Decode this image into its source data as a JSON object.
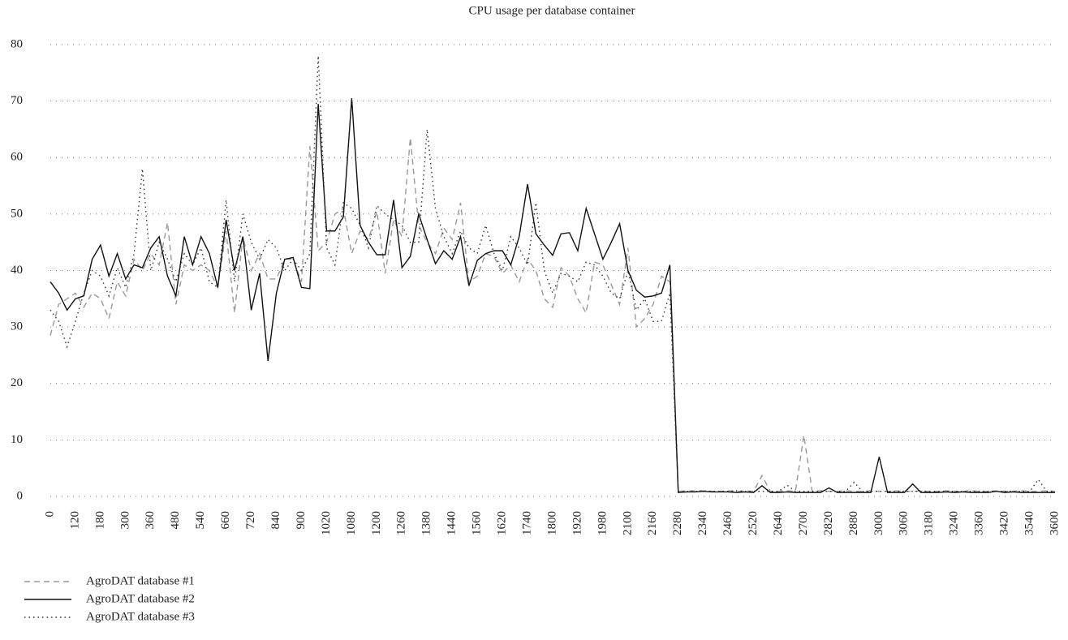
{
  "chart_data": {
    "type": "line",
    "title": "CPU usage per database container",
    "categories": [
      "0",
      null,
      null,
      "120",
      null,
      null,
      "180",
      null,
      null,
      "300",
      null,
      null,
      "360",
      null,
      null,
      "480",
      null,
      null,
      "540",
      null,
      null,
      "660",
      null,
      null,
      "720",
      null,
      null,
      "840",
      null,
      null,
      "900",
      null,
      null,
      "1020",
      null,
      null,
      "1080",
      null,
      null,
      "1200",
      null,
      null,
      "1260",
      null,
      null,
      "1380",
      null,
      null,
      "1440",
      null,
      null,
      "1560",
      null,
      null,
      "1620",
      null,
      null,
      "1740",
      null,
      null,
      "1800",
      null,
      null,
      "1920",
      null,
      null,
      "1980",
      null,
      null,
      "2100",
      null,
      null,
      "2160",
      null,
      null,
      "2280",
      null,
      null,
      "2340",
      null,
      null,
      "2460",
      null,
      null,
      "2520",
      null,
      null,
      "2640",
      null,
      null,
      "2700",
      null,
      null,
      "2820",
      null,
      null,
      "2880",
      null,
      null,
      "3000",
      null,
      null,
      "3060",
      null,
      null,
      "3180",
      null,
      null,
      "3240",
      null,
      null,
      "3360",
      null,
      null,
      "3420",
      null,
      null,
      "3540",
      null,
      null,
      "3600"
    ],
    "series": [
      {
        "name": "AgroDAT database #1",
        "color": "#999999",
        "dash": "7 5",
        "values": [
          28.5,
          34,
          35,
          36,
          33.5,
          36,
          35,
          31.5,
          38,
          35.5,
          42,
          40,
          43,
          41,
          48.5,
          34,
          41,
          40,
          41,
          40,
          37,
          47,
          32.5,
          46,
          40,
          43,
          38.5,
          38.5,
          42,
          42,
          38,
          62,
          43.5,
          45,
          50,
          51,
          43,
          47,
          45.5,
          50.5,
          39.5,
          49,
          46,
          63.5,
          48,
          45,
          43,
          47.5,
          45.5,
          52,
          38,
          39,
          43,
          42.5,
          39.5,
          41,
          38,
          42,
          40,
          35,
          33.5,
          40.5,
          39,
          35,
          32.5,
          41.5,
          41,
          37.5,
          34,
          44,
          30,
          31.5,
          34,
          39,
          38,
          0.9,
          1,
          1,
          1,
          0.9,
          0.9,
          1,
          0.9,
          1,
          0.9,
          3.7,
          0.9,
          0.9,
          1,
          0.9,
          10.8,
          0.9,
          1,
          0.9,
          0.9,
          1,
          0.9,
          0.9,
          1,
          0.9,
          0.9,
          1,
          0.9,
          0.9,
          1,
          0.9,
          0.9,
          1,
          0.9,
          0.9,
          1,
          0.9,
          0.9,
          1,
          0.9,
          0.9,
          1,
          0.9,
          0.9,
          1,
          0.9
        ]
      },
      {
        "name": "AgroDAT database #2",
        "color": "#111111",
        "dash": "",
        "values": [
          38,
          36,
          33,
          35,
          35.5,
          42,
          44.5,
          39,
          43,
          38.5,
          41,
          40.5,
          44,
          46,
          39,
          35.5,
          46,
          41,
          46,
          43,
          37,
          49,
          40,
          46,
          33,
          39.5,
          24,
          36,
          42,
          42.3,
          37,
          36.8,
          69.5,
          47,
          47,
          49.5,
          70.5,
          48,
          45,
          42.8,
          42.8,
          52.5,
          40.5,
          42.5,
          50,
          45.5,
          41.2,
          43.5,
          42,
          46,
          37.3,
          41.8,
          43,
          43.5,
          43.5,
          41,
          46,
          55.3,
          46.5,
          44.5,
          42.7,
          46.5,
          46.7,
          43.5,
          51,
          46.5,
          42,
          45,
          48.3,
          40,
          36.5,
          35.3,
          35.5,
          36,
          41,
          0.7,
          0.8,
          0.8,
          0.9,
          0.8,
          0.8,
          0.8,
          0.7,
          0.8,
          0.7,
          1.9,
          0.7,
          0.7,
          0.8,
          0.7,
          0.7,
          0.7,
          0.7,
          1.5,
          0.7,
          0.7,
          0.7,
          0.7,
          0.7,
          7,
          0.7,
          0.7,
          0.7,
          2.2,
          0.7,
          0.7,
          0.7,
          0.8,
          0.7,
          0.8,
          0.7,
          0.7,
          0.7,
          0.9,
          0.7,
          0.8,
          0.7,
          0.7,
          0.7,
          0.7,
          0.7
        ]
      },
      {
        "name": "AgroDAT database #3",
        "color": "#333333",
        "dash": "1.5 4",
        "values": [
          33,
          31,
          26.5,
          31,
          36,
          40,
          39,
          35.5,
          40.5,
          37,
          43,
          58,
          40,
          45,
          42,
          38,
          43,
          41,
          44,
          38,
          37,
          52.5,
          38,
          50,
          45,
          42,
          45.5,
          44,
          40,
          42,
          40,
          43,
          78,
          44,
          41,
          52,
          51,
          48,
          44,
          51.5,
          50,
          49,
          48,
          45,
          45,
          65,
          51,
          46,
          43,
          47,
          44,
          43,
          48,
          43,
          40,
          46,
          44,
          41,
          52,
          40,
          36,
          39.5,
          39,
          38,
          41.5,
          41,
          39,
          36,
          35,
          40,
          33,
          35,
          31,
          31,
          36,
          0.9,
          0.9,
          0.9,
          1,
          0.9,
          0.9,
          0.9,
          1,
          0.9,
          0.9,
          0.9,
          0.9,
          0.9,
          2,
          0.9,
          0.9,
          0.9,
          0.9,
          0.9,
          0.9,
          0.9,
          2.5,
          0.9,
          0.9,
          0.9,
          0.9,
          0.9,
          0.9,
          0.9,
          0.9,
          0.9,
          0.9,
          0.9,
          0.9,
          0.9,
          0.9,
          0.9,
          0.9,
          0.9,
          0.9,
          0.9,
          0.9,
          0.9,
          3,
          0.9,
          0.9
        ]
      }
    ],
    "ylim": [
      0,
      80
    ],
    "yticks": [
      0,
      10,
      20,
      30,
      40,
      50,
      60,
      70,
      80
    ],
    "grid": true,
    "legend": "bottom-left"
  }
}
